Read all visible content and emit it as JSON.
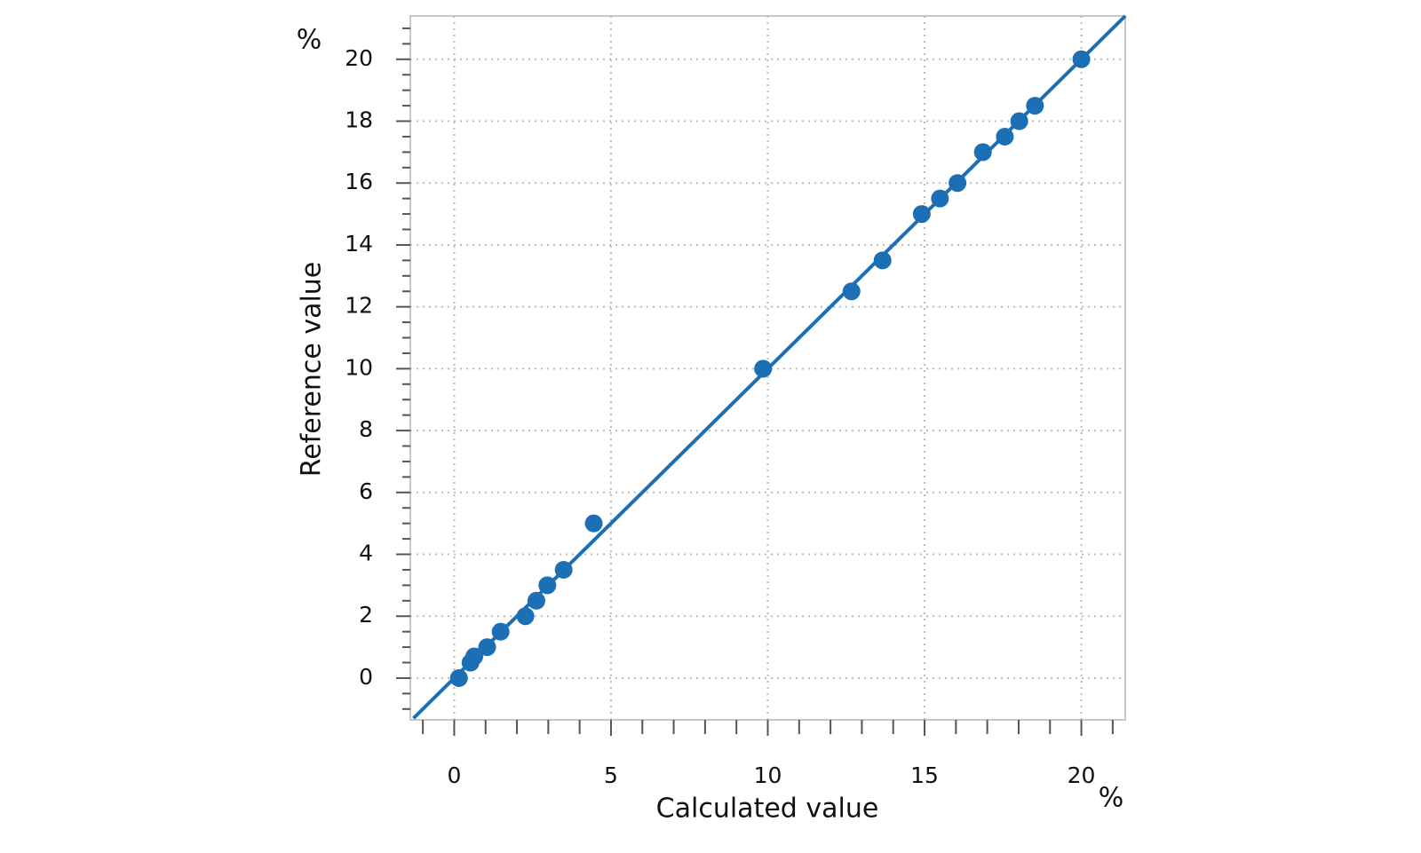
{
  "chart_data": {
    "type": "scatter",
    "xlabel": "Calculated value",
    "ylabel": "Reference value",
    "x_unit": "%",
    "y_unit": "%",
    "color": "#1c6fb4",
    "grid": true,
    "xlim": [
      -1.4,
      21.4
    ],
    "ylim": [
      -1.35,
      21.4
    ],
    "xticks": [
      0,
      5,
      10,
      15,
      20
    ],
    "yticks": [
      0,
      2,
      4,
      6,
      8,
      10,
      12,
      14,
      16,
      18,
      20
    ],
    "xminorticks": [
      -1,
      1,
      2,
      3,
      4,
      6,
      7,
      8,
      9,
      11,
      12,
      13,
      14,
      16,
      17,
      18,
      19,
      21
    ],
    "yminorticks": [
      -1,
      -0.5,
      0.5,
      1,
      1.5,
      2.5,
      3,
      3.5,
      4.5,
      5,
      5.5,
      6.5,
      7,
      7.5,
      8.5,
      9,
      9.5,
      10.5,
      11,
      11.5,
      12.5,
      13,
      13.5,
      14.5,
      15,
      15.5,
      16.5,
      17,
      17.5,
      18.5,
      19,
      19.5,
      20.5,
      21
    ],
    "series": [
      {
        "x": [
          0.15,
          0.52,
          0.64,
          1.05,
          1.48,
          2.27,
          2.62,
          2.97,
          3.49,
          4.45,
          9.85,
          12.67,
          13.66,
          14.91,
          15.49,
          16.05,
          16.86,
          17.56,
          18.02,
          18.52,
          20
        ],
        "values": [
          0,
          0.5,
          0.7,
          1,
          1.5,
          2,
          2.5,
          3,
          3.5,
          5,
          10,
          12.5,
          13.5,
          15,
          15.5,
          16,
          17,
          17.5,
          18,
          18.5,
          20
        ]
      }
    ],
    "fit_line": {
      "x": [
        -1.3,
        21.4
      ],
      "values": [
        -1.3,
        21.4
      ]
    }
  }
}
